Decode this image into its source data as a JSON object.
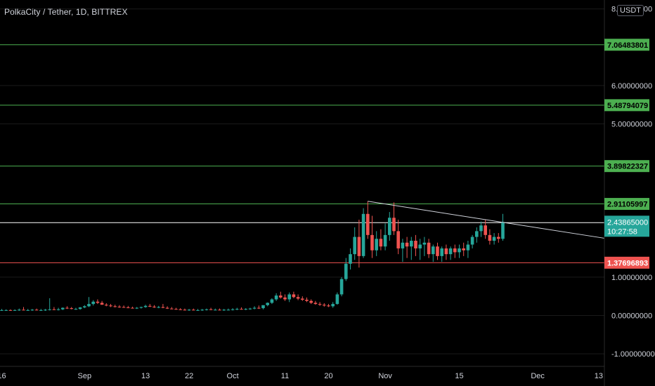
{
  "header": {
    "symbol_title": "PolkaCity / Tether, 1D, BITTREX",
    "currency": "USDT"
  },
  "colors": {
    "background": "#000000",
    "up": "#26a69a",
    "down": "#ef5350",
    "support_line": "#4caf50",
    "resistance_line": "#ef5350",
    "trendline": "#d1d4dc",
    "axis_text": "#d1d4dc",
    "grid": "#1a1a1a"
  },
  "chart_data": {
    "type": "candlestick",
    "title": "PolkaCity / Tether, 1D, BITTREX",
    "ylim": [
      -1.0,
      8.0
    ],
    "y_ticks": [
      "8.00000000",
      "6.00000000",
      "5.00000000",
      "1.00000000",
      "0.00000000",
      "-1.00000000"
    ],
    "x_ticks": [
      "16",
      "Sep",
      "13",
      "22",
      "Oct",
      "11",
      "20",
      "Nov",
      "15",
      "Dec",
      "13"
    ],
    "horizontal_levels": [
      {
        "label": "7.06483801",
        "value": 7.06483801,
        "color": "#4caf50",
        "label_text_color": "#000000"
      },
      {
        "label": "5.48794079",
        "value": 5.48794079,
        "color": "#4caf50",
        "label_text_color": "#000000"
      },
      {
        "label": "3.89822327",
        "value": 3.89822327,
        "color": "#4caf50",
        "label_text_color": "#000000"
      },
      {
        "label": "2.91105997",
        "value": 2.91105997,
        "color": "#4caf50",
        "label_text_color": "#000000"
      },
      {
        "label": "2.42244961",
        "value": 2.42244961,
        "color": "#ffffff",
        "label_text_color": "#000000"
      },
      {
        "label": "1.37696893",
        "value": 1.37696893,
        "color": "#ef5350",
        "label_text_color": "#ffffff"
      }
    ],
    "last_price": {
      "label": "2.43865000",
      "countdown": "10:27:58",
      "value": 2.43865,
      "color": "#26a69a"
    },
    "trendline": {
      "from": {
        "day_index": 84,
        "value": 2.98
      },
      "to": {
        "day_index": 133,
        "value": 2.11
      }
    },
    "candles": [
      {
        "o": 0.14,
        "h": 0.17,
        "l": 0.12,
        "c": 0.14
      },
      {
        "o": 0.14,
        "h": 0.16,
        "l": 0.12,
        "c": 0.14
      },
      {
        "o": 0.14,
        "h": 0.16,
        "l": 0.12,
        "c": 0.13
      },
      {
        "o": 0.13,
        "h": 0.16,
        "l": 0.12,
        "c": 0.14
      },
      {
        "o": 0.14,
        "h": 0.18,
        "l": 0.12,
        "c": 0.15
      },
      {
        "o": 0.15,
        "h": 0.22,
        "l": 0.13,
        "c": 0.14
      },
      {
        "o": 0.14,
        "h": 0.17,
        "l": 0.12,
        "c": 0.14
      },
      {
        "o": 0.14,
        "h": 0.17,
        "l": 0.12,
        "c": 0.15
      },
      {
        "o": 0.15,
        "h": 0.18,
        "l": 0.13,
        "c": 0.14
      },
      {
        "o": 0.14,
        "h": 0.17,
        "l": 0.12,
        "c": 0.14
      },
      {
        "o": 0.14,
        "h": 0.17,
        "l": 0.12,
        "c": 0.15
      },
      {
        "o": 0.15,
        "h": 0.45,
        "l": 0.13,
        "c": 0.16
      },
      {
        "o": 0.16,
        "h": 0.22,
        "l": 0.14,
        "c": 0.15
      },
      {
        "o": 0.15,
        "h": 0.2,
        "l": 0.13,
        "c": 0.16
      },
      {
        "o": 0.16,
        "h": 0.21,
        "l": 0.14,
        "c": 0.2
      },
      {
        "o": 0.2,
        "h": 0.24,
        "l": 0.17,
        "c": 0.19
      },
      {
        "o": 0.19,
        "h": 0.22,
        "l": 0.16,
        "c": 0.17
      },
      {
        "o": 0.17,
        "h": 0.2,
        "l": 0.15,
        "c": 0.17
      },
      {
        "o": 0.17,
        "h": 0.22,
        "l": 0.15,
        "c": 0.21
      },
      {
        "o": 0.21,
        "h": 0.27,
        "l": 0.19,
        "c": 0.24
      },
      {
        "o": 0.24,
        "h": 0.48,
        "l": 0.22,
        "c": 0.3
      },
      {
        "o": 0.3,
        "h": 0.4,
        "l": 0.26,
        "c": 0.36
      },
      {
        "o": 0.36,
        "h": 0.42,
        "l": 0.3,
        "c": 0.33
      },
      {
        "o": 0.33,
        "h": 0.38,
        "l": 0.28,
        "c": 0.28
      },
      {
        "o": 0.28,
        "h": 0.32,
        "l": 0.24,
        "c": 0.26
      },
      {
        "o": 0.26,
        "h": 0.3,
        "l": 0.22,
        "c": 0.24
      },
      {
        "o": 0.24,
        "h": 0.28,
        "l": 0.21,
        "c": 0.23
      },
      {
        "o": 0.23,
        "h": 0.27,
        "l": 0.2,
        "c": 0.22
      },
      {
        "o": 0.22,
        "h": 0.26,
        "l": 0.2,
        "c": 0.21
      },
      {
        "o": 0.21,
        "h": 0.25,
        "l": 0.19,
        "c": 0.2
      },
      {
        "o": 0.2,
        "h": 0.23,
        "l": 0.18,
        "c": 0.19
      },
      {
        "o": 0.19,
        "h": 0.22,
        "l": 0.17,
        "c": 0.2
      },
      {
        "o": 0.2,
        "h": 0.23,
        "l": 0.18,
        "c": 0.22
      },
      {
        "o": 0.22,
        "h": 0.28,
        "l": 0.2,
        "c": 0.25
      },
      {
        "o": 0.25,
        "h": 0.3,
        "l": 0.22,
        "c": 0.23
      },
      {
        "o": 0.23,
        "h": 0.27,
        "l": 0.2,
        "c": 0.21
      },
      {
        "o": 0.21,
        "h": 0.25,
        "l": 0.19,
        "c": 0.22
      },
      {
        "o": 0.22,
        "h": 0.3,
        "l": 0.19,
        "c": 0.2
      },
      {
        "o": 0.2,
        "h": 0.24,
        "l": 0.17,
        "c": 0.18
      },
      {
        "o": 0.18,
        "h": 0.22,
        "l": 0.16,
        "c": 0.17
      },
      {
        "o": 0.17,
        "h": 0.2,
        "l": 0.15,
        "c": 0.16
      },
      {
        "o": 0.16,
        "h": 0.19,
        "l": 0.14,
        "c": 0.15
      },
      {
        "o": 0.15,
        "h": 0.18,
        "l": 0.13,
        "c": 0.14
      },
      {
        "o": 0.14,
        "h": 0.17,
        "l": 0.12,
        "c": 0.15
      },
      {
        "o": 0.15,
        "h": 0.18,
        "l": 0.13,
        "c": 0.14
      },
      {
        "o": 0.14,
        "h": 0.17,
        "l": 0.12,
        "c": 0.14
      },
      {
        "o": 0.14,
        "h": 0.17,
        "l": 0.12,
        "c": 0.15
      },
      {
        "o": 0.15,
        "h": 0.18,
        "l": 0.13,
        "c": 0.16
      },
      {
        "o": 0.16,
        "h": 0.2,
        "l": 0.14,
        "c": 0.15
      },
      {
        "o": 0.15,
        "h": 0.18,
        "l": 0.13,
        "c": 0.15
      },
      {
        "o": 0.15,
        "h": 0.18,
        "l": 0.13,
        "c": 0.14
      },
      {
        "o": 0.14,
        "h": 0.17,
        "l": 0.12,
        "c": 0.15
      },
      {
        "o": 0.15,
        "h": 0.18,
        "l": 0.13,
        "c": 0.15
      },
      {
        "o": 0.15,
        "h": 0.19,
        "l": 0.13,
        "c": 0.16
      },
      {
        "o": 0.16,
        "h": 0.2,
        "l": 0.14,
        "c": 0.17
      },
      {
        "o": 0.17,
        "h": 0.21,
        "l": 0.15,
        "c": 0.16
      },
      {
        "o": 0.16,
        "h": 0.19,
        "l": 0.14,
        "c": 0.17
      },
      {
        "o": 0.17,
        "h": 0.2,
        "l": 0.15,
        "c": 0.18
      },
      {
        "o": 0.18,
        "h": 0.24,
        "l": 0.16,
        "c": 0.2
      },
      {
        "o": 0.2,
        "h": 0.26,
        "l": 0.17,
        "c": 0.19
      },
      {
        "o": 0.19,
        "h": 0.25,
        "l": 0.16,
        "c": 0.27
      },
      {
        "o": 0.27,
        "h": 0.34,
        "l": 0.24,
        "c": 0.33
      },
      {
        "o": 0.33,
        "h": 0.45,
        "l": 0.3,
        "c": 0.42
      },
      {
        "o": 0.42,
        "h": 0.58,
        "l": 0.38,
        "c": 0.52
      },
      {
        "o": 0.52,
        "h": 0.62,
        "l": 0.44,
        "c": 0.47
      },
      {
        "o": 0.47,
        "h": 0.55,
        "l": 0.38,
        "c": 0.42
      },
      {
        "o": 0.42,
        "h": 0.6,
        "l": 0.35,
        "c": 0.55
      },
      {
        "o": 0.55,
        "h": 0.62,
        "l": 0.45,
        "c": 0.48
      },
      {
        "o": 0.48,
        "h": 0.55,
        "l": 0.4,
        "c": 0.44
      },
      {
        "o": 0.44,
        "h": 0.5,
        "l": 0.38,
        "c": 0.41
      },
      {
        "o": 0.41,
        "h": 0.47,
        "l": 0.35,
        "c": 0.38
      },
      {
        "o": 0.38,
        "h": 0.42,
        "l": 0.3,
        "c": 0.33
      },
      {
        "o": 0.33,
        "h": 0.38,
        "l": 0.28,
        "c": 0.3
      },
      {
        "o": 0.3,
        "h": 0.35,
        "l": 0.25,
        "c": 0.28
      },
      {
        "o": 0.28,
        "h": 0.32,
        "l": 0.23,
        "c": 0.26
      },
      {
        "o": 0.26,
        "h": 0.3,
        "l": 0.22,
        "c": 0.24
      },
      {
        "o": 0.24,
        "h": 0.35,
        "l": 0.2,
        "c": 0.3
      },
      {
        "o": 0.3,
        "h": 0.6,
        "l": 0.28,
        "c": 0.55
      },
      {
        "o": 0.55,
        "h": 1.0,
        "l": 0.5,
        "c": 0.95
      },
      {
        "o": 0.95,
        "h": 1.5,
        "l": 0.9,
        "c": 1.35
      },
      {
        "o": 1.35,
        "h": 1.75,
        "l": 1.2,
        "c": 1.6
      },
      {
        "o": 1.6,
        "h": 2.3,
        "l": 1.45,
        "c": 2.05
      },
      {
        "o": 2.05,
        "h": 2.5,
        "l": 1.25,
        "c": 1.55
      },
      {
        "o": 1.55,
        "h": 2.8,
        "l": 1.5,
        "c": 2.65
      },
      {
        "o": 2.65,
        "h": 2.98,
        "l": 2.0,
        "c": 2.1
      },
      {
        "o": 2.1,
        "h": 2.6,
        "l": 1.5,
        "c": 1.7
      },
      {
        "o": 1.7,
        "h": 2.2,
        "l": 1.55,
        "c": 2.0
      },
      {
        "o": 2.0,
        "h": 2.25,
        "l": 1.7,
        "c": 1.8
      },
      {
        "o": 1.8,
        "h": 2.4,
        "l": 1.7,
        "c": 2.1
      },
      {
        "o": 2.1,
        "h": 2.7,
        "l": 1.95,
        "c": 2.55
      },
      {
        "o": 2.55,
        "h": 2.95,
        "l": 2.1,
        "c": 2.2
      },
      {
        "o": 2.2,
        "h": 2.5,
        "l": 1.6,
        "c": 1.75
      },
      {
        "o": 1.75,
        "h": 2.0,
        "l": 1.4,
        "c": 1.9
      },
      {
        "o": 1.9,
        "h": 2.05,
        "l": 1.5,
        "c": 1.8
      },
      {
        "o": 1.8,
        "h": 2.05,
        "l": 1.45,
        "c": 1.95
      },
      {
        "o": 1.95,
        "h": 2.1,
        "l": 1.55,
        "c": 1.75
      },
      {
        "o": 1.75,
        "h": 2.0,
        "l": 1.45,
        "c": 1.85
      },
      {
        "o": 1.85,
        "h": 2.05,
        "l": 1.55,
        "c": 1.9
      },
      {
        "o": 1.9,
        "h": 2.0,
        "l": 1.5,
        "c": 1.6
      },
      {
        "o": 1.6,
        "h": 1.85,
        "l": 1.4,
        "c": 1.8
      },
      {
        "o": 1.8,
        "h": 1.9,
        "l": 1.45,
        "c": 1.55
      },
      {
        "o": 1.55,
        "h": 1.8,
        "l": 1.4,
        "c": 1.75
      },
      {
        "o": 1.75,
        "h": 1.85,
        "l": 1.45,
        "c": 1.6
      },
      {
        "o": 1.6,
        "h": 1.8,
        "l": 1.45,
        "c": 1.75
      },
      {
        "o": 1.75,
        "h": 1.85,
        "l": 1.5,
        "c": 1.65
      },
      {
        "o": 1.65,
        "h": 1.85,
        "l": 1.5,
        "c": 1.75
      },
      {
        "o": 1.75,
        "h": 1.9,
        "l": 1.55,
        "c": 1.7
      },
      {
        "o": 1.7,
        "h": 1.95,
        "l": 1.5,
        "c": 1.85
      },
      {
        "o": 1.85,
        "h": 2.1,
        "l": 1.75,
        "c": 2.05
      },
      {
        "o": 2.05,
        "h": 2.3,
        "l": 1.9,
        "c": 2.2
      },
      {
        "o": 2.2,
        "h": 2.45,
        "l": 2.05,
        "c": 2.35
      },
      {
        "o": 2.35,
        "h": 2.5,
        "l": 2.0,
        "c": 2.1
      },
      {
        "o": 2.1,
        "h": 2.25,
        "l": 1.85,
        "c": 1.95
      },
      {
        "o": 1.95,
        "h": 2.15,
        "l": 1.85,
        "c": 2.05
      },
      {
        "o": 2.05,
        "h": 2.15,
        "l": 1.9,
        "c": 2.0
      },
      {
        "o": 2.0,
        "h": 2.65,
        "l": 1.95,
        "c": 2.44
      }
    ]
  }
}
